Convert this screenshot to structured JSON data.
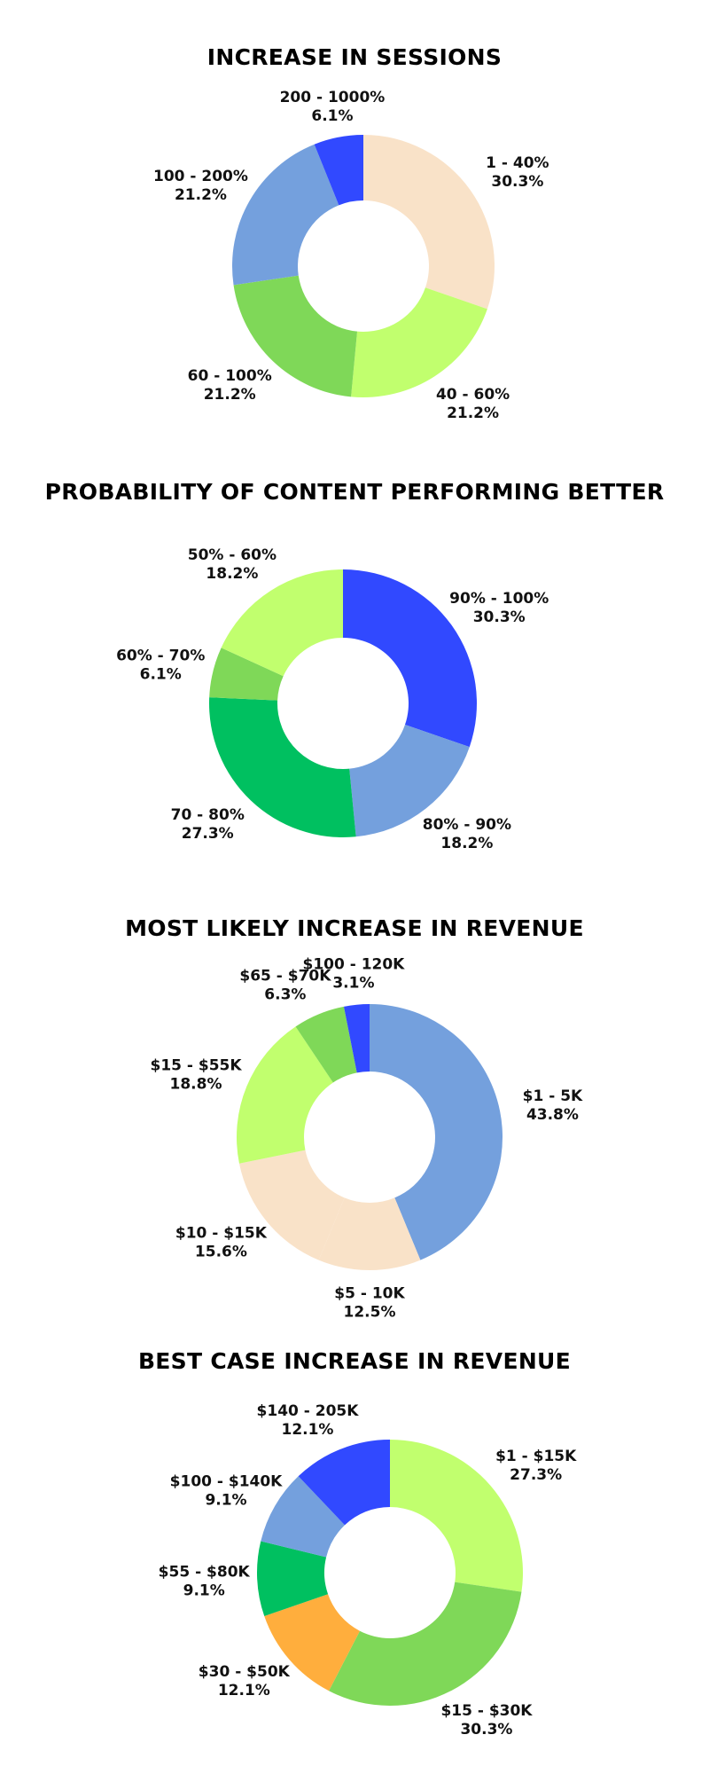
{
  "chart_data": [
    {
      "type": "pie",
      "title": "INCREASE IN SESSIONS",
      "slices": [
        {
          "label": "1 - 40%",
          "value_label": "30.3%",
          "value": 30.3,
          "color": "#F9E2C8"
        },
        {
          "label": "40 - 60%",
          "value_label": "21.2%",
          "value": 21.2,
          "color": "#C1FF6E"
        },
        {
          "label": "60 - 100%",
          "value_label": "21.2%",
          "value": 21.2,
          "color": "#7FD858"
        },
        {
          "label": "100 - 200%",
          "value_label": "21.2%",
          "value": 21.2,
          "color": "#74A0DD"
        },
        {
          "label": "200 - 1000%",
          "value_label": "6.1%",
          "value": 6.1,
          "color": "#3149FF"
        }
      ]
    },
    {
      "type": "pie",
      "title": "PROBABILITY OF CONTENT PERFORMING BETTER",
      "slices": [
        {
          "label": "90% - 100%",
          "value_label": "30.3%",
          "value": 30.3,
          "color": "#3149FF"
        },
        {
          "label": "80% - 90%",
          "value_label": "18.2%",
          "value": 18.2,
          "color": "#74A0DD"
        },
        {
          "label": "70 - 80%",
          "value_label": "27.3%",
          "value": 27.3,
          "color": "#00C060"
        },
        {
          "label": "60% - 70%",
          "value_label": "6.1%",
          "value": 6.1,
          "color": "#7FD858"
        },
        {
          "label": "50% - 60%",
          "value_label": "18.2%",
          "value": 18.2,
          "color": "#C1FF6E"
        }
      ]
    },
    {
      "type": "pie",
      "title": "MOST LIKELY INCREASE IN REVENUE",
      "slices": [
        {
          "label": "$1 - 5K",
          "value_label": "43.8%",
          "value": 43.8,
          "color": "#74A0DD"
        },
        {
          "label": "$5 - 10K",
          "value_label": "12.5%",
          "value": 12.5,
          "color": "#F9E2C8"
        },
        {
          "label": "$10 - $15K",
          "value_label": "15.6%",
          "value": 15.6,
          "color": "#F9E2C8"
        },
        {
          "label": "$15 - $55K",
          "value_label": "18.8%",
          "value": 18.8,
          "color": "#C1FF6E"
        },
        {
          "label": "$65 - $70K",
          "value_label": "6.3%",
          "value": 6.3,
          "color": "#7FD858"
        },
        {
          "label": "$100 - 120K",
          "value_label": "3.1%",
          "value": 3.1,
          "color": "#3149FF"
        }
      ]
    },
    {
      "type": "pie",
      "title": "BEST CASE INCREASE IN REVENUE",
      "slices": [
        {
          "label": "$1 - $15K",
          "value_label": "27.3%",
          "value": 27.3,
          "color": "#C1FF6E"
        },
        {
          "label": "$15 - $30K",
          "value_label": "30.3%",
          "value": 30.3,
          "color": "#7FD858"
        },
        {
          "label": "$30 - $50K",
          "value_label": "12.1%",
          "value": 12.1,
          "color": "#FFAE3D"
        },
        {
          "label": "$55 - $80K",
          "value_label": "9.1%",
          "value": 9.1,
          "color": "#00C060"
        },
        {
          "label": "$100 - $140K",
          "value_label": "9.1%",
          "value": 9.1,
          "color": "#74A0DD"
        },
        {
          "label": "$140 - 205K",
          "value_label": "12.1%",
          "value": 12.1,
          "color": "#3149FF"
        }
      ]
    }
  ]
}
